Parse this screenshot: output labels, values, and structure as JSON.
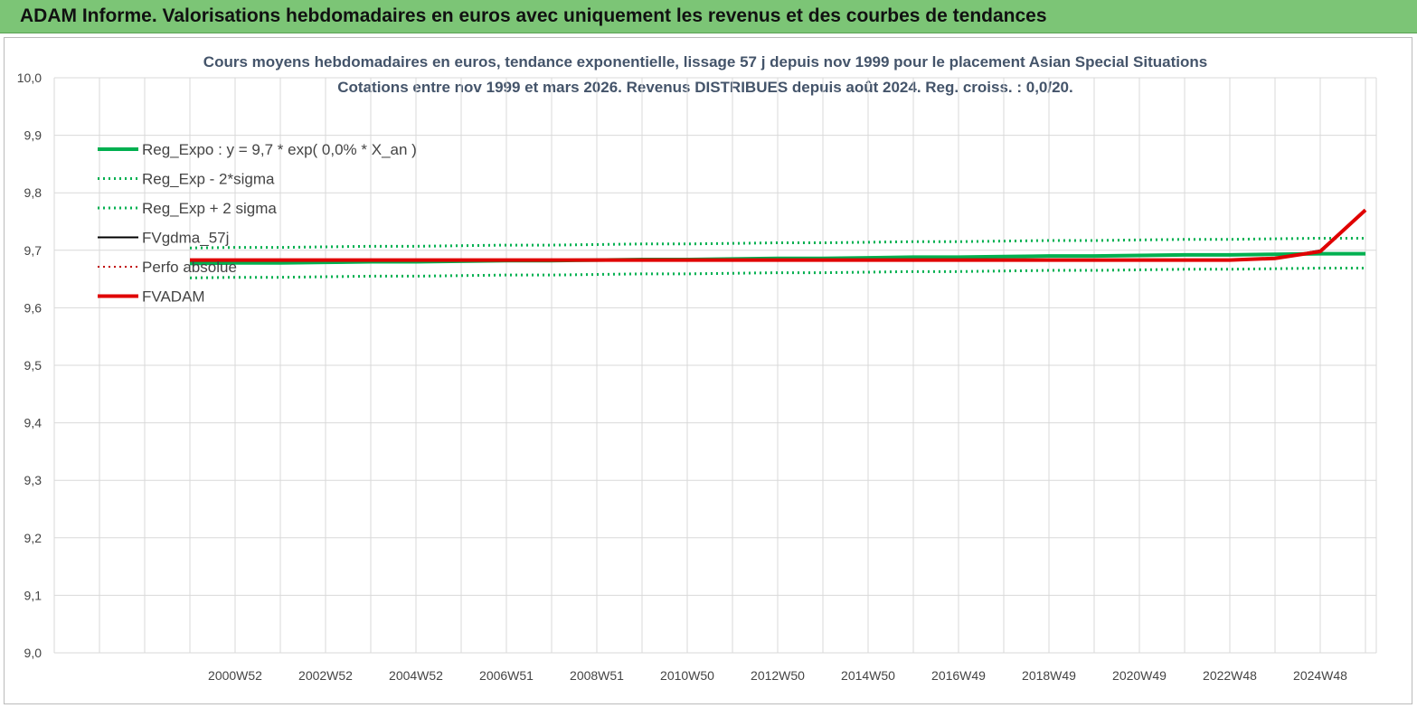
{
  "header": {
    "title": "ADAM Informe. Valorisations hebdomadaires en euros avec uniquement les revenus et des courbes de tendances"
  },
  "chart_data": {
    "type": "line",
    "title": "Cours moyens hebdomadaires en euros, tendance exponentielle, lissage 57 j depuis nov 1999 pour le placement Asian Special Situations",
    "subtitle": "Cotations entre nov 1999 et mars 2026. Revenus DISTRIBUES depuis août 2024. Reg. croiss. : 0,0/20.",
    "categories": [
      null,
      null,
      null,
      null,
      "2000W52",
      null,
      "2002W52",
      null,
      "2004W52",
      null,
      "2006W51",
      null,
      "2008W51",
      null,
      "2010W50",
      null,
      "2012W50",
      null,
      "2014W50",
      null,
      "2016W49",
      null,
      "2018W49",
      null,
      "2020W49",
      null,
      "2022W48",
      null,
      "2024W48",
      null
    ],
    "ylim": [
      9,
      10
    ],
    "yticks": [
      {
        "value": 9,
        "label": "9,0"
      },
      {
        "value": 9.1,
        "label": "9,1"
      },
      {
        "value": 9.2,
        "label": "9,2"
      },
      {
        "value": 9.3,
        "label": "9,3"
      },
      {
        "value": 9.4,
        "label": "9,4"
      },
      {
        "value": 9.5,
        "label": "9,5"
      },
      {
        "value": 9.6,
        "label": "9,6"
      },
      {
        "value": 9.7,
        "label": "9,7"
      },
      {
        "value": 9.8,
        "label": "9,8"
      },
      {
        "value": 9.9,
        "label": "9,9"
      },
      {
        "value": 10,
        "label": "10,0"
      }
    ],
    "grid": true,
    "legend": "top-left",
    "series": [
      {
        "name": "Reg_Expo : y = 9,7 * exp( 0,0% *  X_an )",
        "color": "#00b050",
        "dash": "solid",
        "width": 4,
        "values": [
          null,
          null,
          null,
          9.677,
          9.678,
          9.678,
          9.679,
          9.68,
          9.68,
          9.681,
          9.682,
          9.682,
          9.683,
          9.684,
          9.684,
          9.685,
          9.686,
          9.686,
          9.687,
          9.688,
          9.688,
          9.689,
          9.69,
          9.69,
          9.691,
          9.692,
          9.692,
          9.693,
          9.694,
          9.694
        ]
      },
      {
        "name": "Reg_Exp - 2*sigma",
        "color": "#00b050",
        "dash": "dotted",
        "width": 3,
        "values": [
          null,
          null,
          null,
          9.652,
          9.653,
          9.653,
          9.654,
          9.655,
          9.655,
          9.656,
          9.657,
          9.657,
          9.658,
          9.659,
          9.659,
          9.66,
          9.661,
          9.661,
          9.662,
          9.663,
          9.663,
          9.664,
          9.665,
          9.665,
          9.666,
          9.667,
          9.667,
          9.668,
          9.669,
          9.669
        ]
      },
      {
        "name": "Reg_Exp + 2 sigma",
        "color": "#00b050",
        "dash": "dotted",
        "width": 3,
        "values": [
          null,
          null,
          null,
          9.704,
          9.705,
          9.705,
          9.706,
          9.707,
          9.707,
          9.708,
          9.709,
          9.709,
          9.71,
          9.711,
          9.711,
          9.712,
          9.713,
          9.713,
          9.714,
          9.715,
          9.715,
          9.716,
          9.717,
          9.717,
          9.718,
          9.719,
          9.719,
          9.72,
          9.721,
          9.721
        ]
      },
      {
        "name": "FVgdma_57j",
        "color": "#000000",
        "dash": "solid",
        "width": 2,
        "values": [
          null,
          null,
          null,
          9.683,
          9.683,
          9.683,
          9.683,
          9.683,
          9.683,
          9.683,
          9.683,
          9.683,
          9.683,
          9.683,
          9.683,
          9.683,
          9.683,
          9.683,
          9.683,
          9.683,
          9.683,
          9.683,
          9.683,
          9.683,
          9.683,
          9.683,
          9.683,
          9.686,
          9.7,
          9.768
        ]
      },
      {
        "name": "Perfo absolue",
        "color": "#c00000",
        "dash": "dotted",
        "width": 2,
        "values": [
          null,
          null,
          null,
          9.683,
          9.683,
          9.683,
          9.683,
          9.683,
          9.683,
          9.683,
          9.683,
          9.683,
          9.683,
          9.683,
          9.683,
          9.683,
          9.683,
          9.683,
          9.683,
          9.683,
          9.683,
          9.683,
          9.683,
          9.683,
          9.683,
          9.683,
          9.683,
          9.686,
          9.698,
          9.77
        ]
      },
      {
        "name": "FVADAM",
        "color": "#e00000",
        "dash": "solid",
        "width": 4,
        "values": [
          null,
          null,
          null,
          9.683,
          9.683,
          9.683,
          9.683,
          9.683,
          9.683,
          9.683,
          9.683,
          9.683,
          9.683,
          9.683,
          9.683,
          9.683,
          9.683,
          9.683,
          9.683,
          9.683,
          9.683,
          9.683,
          9.683,
          9.683,
          9.683,
          9.683,
          9.683,
          9.686,
          9.698,
          9.77
        ]
      }
    ]
  }
}
